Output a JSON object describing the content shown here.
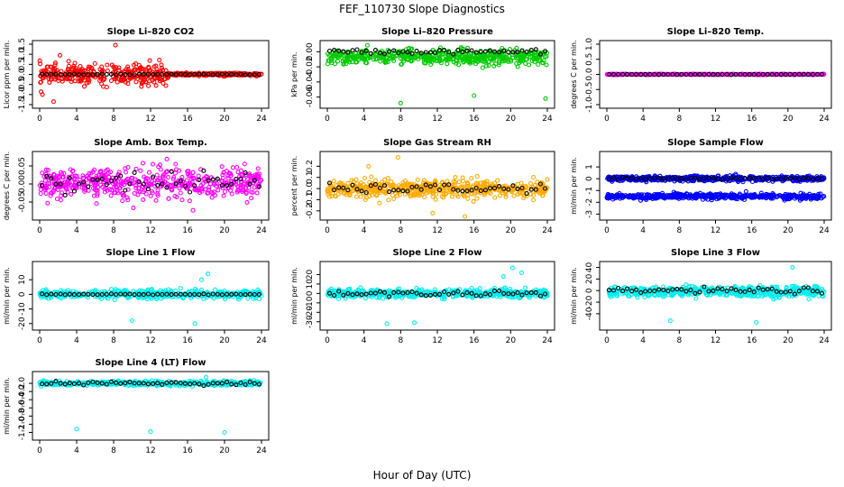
{
  "title": "FEF_110730  Slope Diagnostics",
  "xlabel": "Hour of Day (UTC)",
  "chart_data": [
    {
      "type": "scatter",
      "title": "Slope Li–820 CO2",
      "ylabel": "Licor ppm per min.",
      "xlim": [
        0,
        24
      ],
      "ylim": [
        -1.5,
        1.5
      ],
      "xticks": [
        0,
        4,
        8,
        12,
        16,
        20,
        24
      ],
      "yticks": [
        -1.5,
        -1,
        -0.5,
        0,
        0.5,
        1,
        1.5
      ],
      "ytick_labels": [
        "-1.5",
        "-1.0",
        "-0.5",
        "0.0",
        "0.5",
        "1.0",
        "1.5"
      ],
      "color": "#ff0000",
      "series": [
        {
          "center": 0,
          "spread": 0.45,
          "hours": [
            0,
            14
          ],
          "outliers": [
            [
              0.3,
              -1.0
            ],
            [
              1.5,
              -1.35
            ],
            [
              8.2,
              1.45
            ],
            [
              2.2,
              0.95
            ]
          ]
        },
        {
          "center": 0,
          "spread": 0.06,
          "hours": [
            14,
            24
          ]
        }
      ],
      "black": {
        "center": 0,
        "spread": 0.02
      }
    },
    {
      "type": "scatter",
      "title": "Slope Li–820 Pressure",
      "ylabel": "kPa per min.",
      "xlim": [
        0,
        24
      ],
      "ylim": [
        -0.07,
        0.01
      ],
      "xticks": [
        0,
        4,
        8,
        12,
        16,
        20,
        24
      ],
      "yticks": [
        -0.06,
        -0.04,
        -0.02,
        0
      ],
      "ytick_labels": [
        "-0.06",
        "-0.04",
        "-0.02",
        "0.00"
      ],
      "color": "#00cc00",
      "series": [
        {
          "center": -0.007,
          "spread": 0.009,
          "hours": [
            0,
            24
          ],
          "outliers": [
            [
              8.0,
              -0.068
            ],
            [
              16.0,
              -0.058
            ],
            [
              23.8,
              -0.062
            ]
          ]
        }
      ],
      "black": {
        "center": 0,
        "spread": 0.003
      }
    },
    {
      "type": "scatter",
      "title": "Slope Li–820 Temp.",
      "ylabel": "degrees C per min.",
      "xlim": [
        0,
        24
      ],
      "ylim": [
        -1.0,
        1.0
      ],
      "xticks": [
        0,
        4,
        8,
        12,
        16,
        20,
        24
      ],
      "yticks": [
        -1,
        -0.5,
        0,
        0.5,
        1
      ],
      "ytick_labels": [
        "-1.0",
        "-0.5",
        "0.0",
        "0.5",
        "1.0"
      ],
      "color": "#ff00ff",
      "series": [
        {
          "center": 0,
          "spread": 0.01,
          "hours": [
            0,
            24
          ]
        }
      ],
      "black": {
        "center": 0,
        "spread": 0.005
      }
    },
    {
      "type": "scatter",
      "title": "Slope Amb. Box Temp.",
      "ylabel": "degrees C per min.",
      "xlim": [
        0,
        24
      ],
      "ylim": [
        -0.09,
        0.08
      ],
      "xticks": [
        0,
        4,
        8,
        12,
        16,
        20,
        24
      ],
      "yticks": [
        -0.05,
        0,
        0.05
      ],
      "ytick_labels": [
        "-0.05",
        "0.00",
        "0.05"
      ],
      "color": "#ff00ff",
      "series": [
        {
          "center": 0,
          "spread": 0.04,
          "hours": [
            0,
            24
          ]
        }
      ],
      "black": {
        "center": 0.005,
        "spread": 0.03
      }
    },
    {
      "type": "scatter",
      "title": "Slope Gas Stream RH",
      "ylabel": "percent per min.",
      "xlim": [
        0,
        24
      ],
      "ylim": [
        -0.25,
        0.3
      ],
      "xticks": [
        0,
        4,
        8,
        12,
        16,
        20,
        24
      ],
      "yticks": [
        -0.2,
        -0.1,
        0,
        0.1,
        0.2
      ],
      "ytick_labels": [
        "-0.2",
        "-0.1",
        "0.0",
        "0.1",
        "0.2"
      ],
      "color": "#ffaa00",
      "series": [
        {
          "center": 0,
          "spread": 0.07,
          "hours": [
            0,
            24
          ],
          "outliers": [
            [
              4.5,
              0.2
            ],
            [
              7.7,
              0.28
            ],
            [
              11.5,
              -0.22
            ],
            [
              15,
              -0.25
            ]
          ]
        }
      ],
      "black": {
        "center": 0,
        "spread": 0.04
      }
    },
    {
      "type": "scatter",
      "title": "Slope Sample Flow",
      "ylabel": "ml/min per min.",
      "xlim": [
        0,
        24
      ],
      "ylim": [
        -3.2,
        2.0
      ],
      "xticks": [
        0,
        4,
        8,
        12,
        16,
        20,
        24
      ],
      "yticks": [
        -3,
        -2,
        -1,
        0,
        1
      ],
      "ytick_labels": [
        "-3",
        "-2",
        "-1",
        "0",
        "1"
      ],
      "color": "#0000ff",
      "series": [
        {
          "center": 0.0,
          "spread": 0.2,
          "hours": [
            0,
            24
          ]
        },
        {
          "center": -1.5,
          "spread": 0.2,
          "hours": [
            0,
            24
          ]
        }
      ],
      "black": {
        "center": 0,
        "spread": 0.12
      }
    },
    {
      "type": "scatter",
      "title": "Slope Line 1 Flow",
      "ylabel": "ml/min per min.",
      "xlim": [
        0,
        24
      ],
      "ylim": [
        -22,
        20
      ],
      "xticks": [
        0,
        4,
        8,
        12,
        16,
        20,
        24
      ],
      "yticks": [
        -20,
        -10,
        0,
        10
      ],
      "ytick_labels": [
        "-20",
        "-10",
        "0",
        "10"
      ],
      "color": "#00eeee",
      "series": [
        {
          "center": 0,
          "spread": 2.5,
          "hours": [
            0,
            24
          ],
          "outliers": [
            [
              10,
              -18
            ],
            [
              16.8,
              -20
            ],
            [
              18.2,
              14
            ],
            [
              17.5,
              10
            ]
          ]
        }
      ],
      "black": {
        "center": 0,
        "spread": 0.3
      }
    },
    {
      "type": "scatter",
      "title": "Slope Line 2 Flow",
      "ylabel": "ml/min per min.",
      "xlim": [
        0,
        24
      ],
      "ylim": [
        -35,
        30
      ],
      "xticks": [
        0,
        4,
        8,
        12,
        16,
        20,
        24
      ],
      "yticks": [
        -30,
        -20,
        -10,
        0,
        10,
        20
      ],
      "ytick_labels": [
        "-30",
        "-20",
        "-10",
        "0",
        "10",
        "20"
      ],
      "color": "#00eeee",
      "series": [
        {
          "center": 0,
          "spread": 4,
          "hours": [
            0,
            24
          ],
          "outliers": [
            [
              6.5,
              -32
            ],
            [
              9.5,
              -31
            ],
            [
              19.2,
              18
            ],
            [
              20.2,
              27
            ],
            [
              21.2,
              22
            ]
          ]
        }
      ],
      "black": {
        "center": 0,
        "spread": 3
      }
    },
    {
      "type": "scatter",
      "title": "Slope Line 3 Flow",
      "ylabel": "ml/min per min.",
      "xlim": [
        0,
        24
      ],
      "ylim": [
        -62,
        44
      ],
      "xticks": [
        0,
        4,
        8,
        12,
        16,
        20,
        24
      ],
      "yticks": [
        -40,
        -20,
        0,
        20,
        40
      ],
      "ytick_labels": [
        "-40",
        "-20",
        "0",
        "20",
        "40"
      ],
      "color": "#00eeee",
      "series": [
        {
          "center": -2,
          "spread": 8,
          "hours": [
            0,
            24
          ],
          "outliers": [
            [
              7,
              -52
            ],
            [
              16.5,
              -55
            ],
            [
              20.5,
              40
            ]
          ]
        }
      ],
      "black": {
        "center": 0,
        "spread": 5
      }
    },
    {
      "type": "scatter",
      "title": "Slope Line 4 (LT) Flow",
      "ylabel": "ml/min per min.",
      "xlim": [
        0,
        24
      ],
      "ylim": [
        -1.3,
        0.2
      ],
      "xticks": [
        0,
        4,
        8,
        12,
        16,
        20,
        24
      ],
      "yticks": [
        -1.2,
        -1,
        -0.8,
        -0.6,
        -0.4,
        -0.2,
        0
      ],
      "ytick_labels": [
        "-1.2",
        "-1.0",
        "-0.8",
        "-0.6",
        "-0.4",
        "-0.2",
        "0.0"
      ],
      "color": "#00eeee",
      "series": [
        {
          "center": 0,
          "spread": 0.05,
          "hours": [
            0,
            24
          ],
          "outliers": [
            [
              4,
              -1.12
            ],
            [
              12,
              -1.18
            ],
            [
              20,
              -1.2
            ],
            [
              18,
              0.15
            ]
          ]
        }
      ],
      "black": {
        "center": 0,
        "spread": 0.04
      }
    }
  ]
}
